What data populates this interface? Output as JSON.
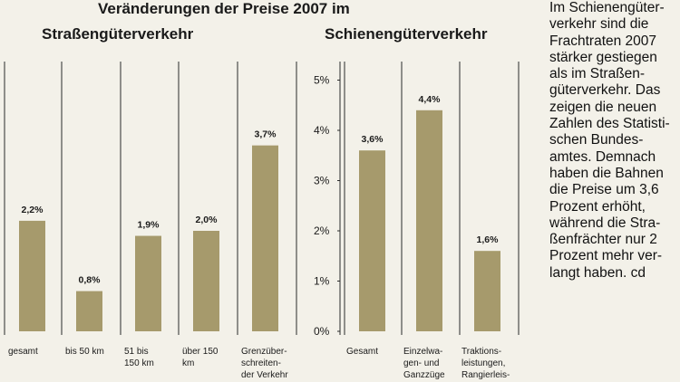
{
  "title_line1": "Veränderungen der Preise 2007 im",
  "panels": [
    {
      "subtitle": "Straßengüterverkehr"
    },
    {
      "subtitle": "Schienengüterverkehr"
    }
  ],
  "chart_data": [
    {
      "type": "bar",
      "title": "Straßengüterverkehr",
      "categories": [
        "gesamt",
        "bis 50 km",
        "51 bis 150 km",
        "über 150 km",
        "Grenzüberschreitender Verkehr"
      ],
      "category_lines": [
        [
          "gesamt"
        ],
        [
          "bis 50 km"
        ],
        [
          "51 bis",
          "150 km"
        ],
        [
          "über 150",
          "km"
        ],
        [
          "Grenzüber-",
          "schreiten-",
          "der Verkehr"
        ]
      ],
      "values": [
        2.2,
        0.8,
        1.9,
        2.0,
        3.7
      ],
      "value_labels": [
        "2,2%",
        "0,8%",
        "1,9%",
        "2,0%",
        "3,7%"
      ],
      "ylim": [
        0,
        5.5
      ]
    },
    {
      "type": "bar",
      "title": "Schienengüterverkehr",
      "categories": [
        "Gesamt",
        "Einzelwagen- und Ganzzüge",
        "Traktionsleistungen, Rangierleistungen"
      ],
      "category_lines": [
        [
          "Gesamt"
        ],
        [
          "Einzelwa-",
          "gen- und",
          "Ganzzüge"
        ],
        [
          "Traktions-",
          "leistungen,",
          "Rangierleis-"
        ]
      ],
      "values": [
        3.6,
        4.4,
        1.6
      ],
      "value_labels": [
        "3,6%",
        "4,4%",
        "1,6%"
      ],
      "yticks": [
        "0%",
        "1%",
        "2%",
        "3%",
        "4%",
        "5%"
      ],
      "ylim": [
        0,
        5.5
      ]
    }
  ],
  "article_lines": [
    "Im Schienengüter-",
    "verkehr sind die",
    "Frachtraten 2007",
    "stärker gestiegen",
    "als im Straßen-",
    "güterverkehr. Das",
    "zeigen die neuen",
    "Zahlen des Statisti-",
    "schen Bundes-",
    "amtes. Demnach",
    "haben die Bahnen",
    "die Preise um 3,6",
    "Prozent erhöht,",
    "während die Stra-",
    "ßenfrächter nur 2",
    "Prozent mehr ver-",
    "langt haben. cd"
  ],
  "colors": {
    "bar": "#a69a6c",
    "grid": "#2a2a2a",
    "background": "#f3f1e9",
    "text": "#1a1a1a"
  }
}
